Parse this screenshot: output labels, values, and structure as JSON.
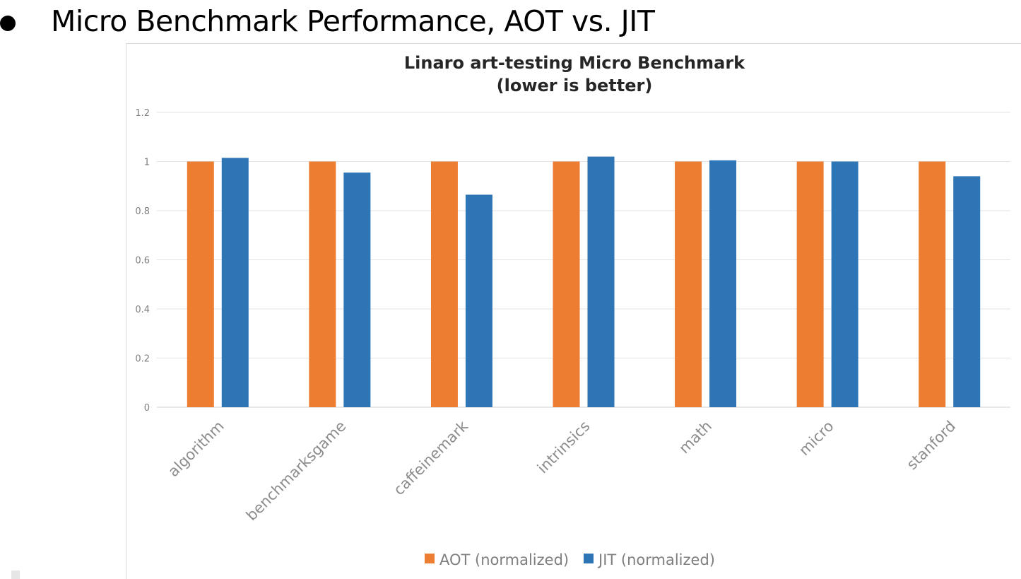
{
  "slide": {
    "heading": "Micro Benchmark Performance, AOT vs. JIT"
  },
  "chart_data": {
    "type": "bar",
    "title": "Linaro art-testing Micro Benchmark",
    "subtitle": "(lower is better)",
    "categories": [
      "algorithm",
      "benchmarksgame",
      "caffeinemark",
      "intrinsics",
      "math",
      "micro",
      "stanford"
    ],
    "series": [
      {
        "name": "AOT (normalized)",
        "color": "#ed7d31",
        "values": [
          1,
          1,
          1,
          1,
          1,
          1,
          1
        ]
      },
      {
        "name": "JIT (normalized)",
        "color": "#2e75b6",
        "values": [
          1.015,
          0.955,
          0.865,
          1.02,
          1.005,
          1.0,
          0.94
        ]
      }
    ],
    "ylim": [
      0,
      1.2
    ],
    "yticks": [
      "0",
      "0.2",
      "0.4",
      "0.6",
      "0.8",
      "1",
      "1.2"
    ],
    "grid": true,
    "legend_position": "bottom"
  }
}
